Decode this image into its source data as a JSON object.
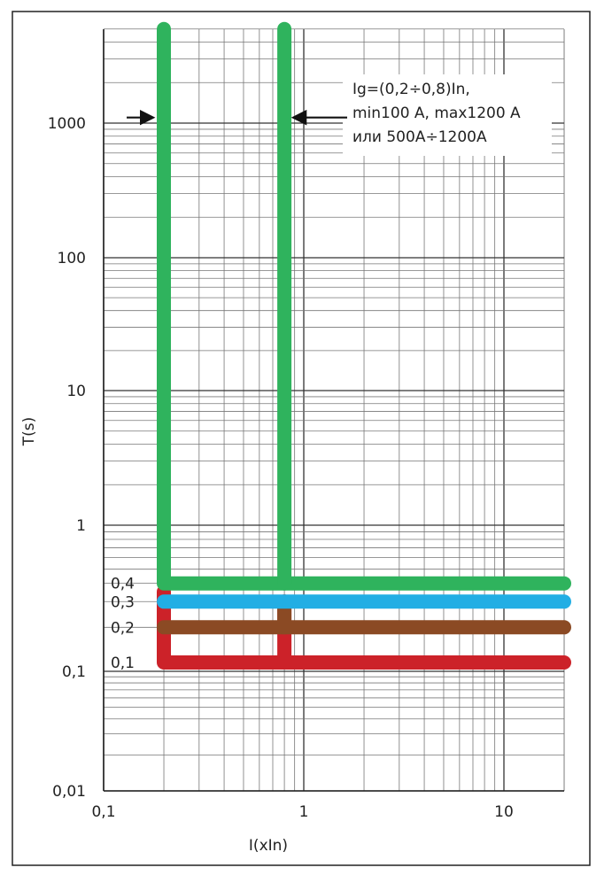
{
  "chart_data": {
    "type": "line",
    "xlabel": "I(xIn)",
    "ylabel": "T(s)",
    "x_scale": "log",
    "y_scale": "log",
    "xlim": [
      0.1,
      20
    ],
    "ylim": [
      0.01,
      6000
    ],
    "grid": true,
    "x_ticks": [
      {
        "value": 0.1,
        "label": "0,1"
      },
      {
        "value": 1,
        "label": "1"
      },
      {
        "value": 10,
        "label": "10"
      }
    ],
    "y_ticks": [
      {
        "value": 0.01,
        "label": "0,01"
      },
      {
        "value": 0.1,
        "label": "0,1"
      },
      {
        "value": 1,
        "label": "1"
      },
      {
        "value": 10,
        "label": "10"
      },
      {
        "value": 100,
        "label": "100"
      },
      {
        "value": 1000,
        "label": "1000"
      }
    ],
    "series": [
      {
        "color": "#cc2229",
        "level_label": "0,1",
        "x": [
          0.2,
          0.2,
          20
        ],
        "y": [
          0.35,
          0.115,
          0.115
        ]
      },
      {
        "color": "#8b4a24",
        "level_label": "0,2",
        "x": [
          0.2,
          20
        ],
        "y": [
          0.2,
          0.2
        ]
      },
      {
        "color": "#22aee4",
        "level_label": "0,3",
        "x": [
          0.2,
          20
        ],
        "y": [
          0.3,
          0.3
        ]
      },
      {
        "color": "#2fb35d",
        "level_label": "0,4",
        "x": [
          0.2,
          0.2,
          20
        ],
        "y": [
          5000,
          0.4,
          0.4
        ]
      },
      {
        "color": "#cc2229",
        "x": [
          0.8,
          0.8
        ],
        "y": [
          0.3,
          0.115
        ]
      },
      {
        "color": "#8b4a24",
        "x": [
          0.8,
          0.8
        ],
        "y": [
          0.3,
          0.2
        ]
      },
      {
        "color": "#2fb35d",
        "x": [
          0.8,
          0.8
        ],
        "y": [
          5000,
          0.4
        ]
      }
    ],
    "annotations": [
      {
        "lines": [
          "Ig=(0,2÷0,8)In,",
          "min100 A, max1200 A",
          "или 500A÷1200A"
        ]
      }
    ],
    "arrows": [
      {
        "target_x": 0.2,
        "target_y": 1100
      },
      {
        "target_x": 0.8,
        "target_y": 1100
      }
    ]
  }
}
